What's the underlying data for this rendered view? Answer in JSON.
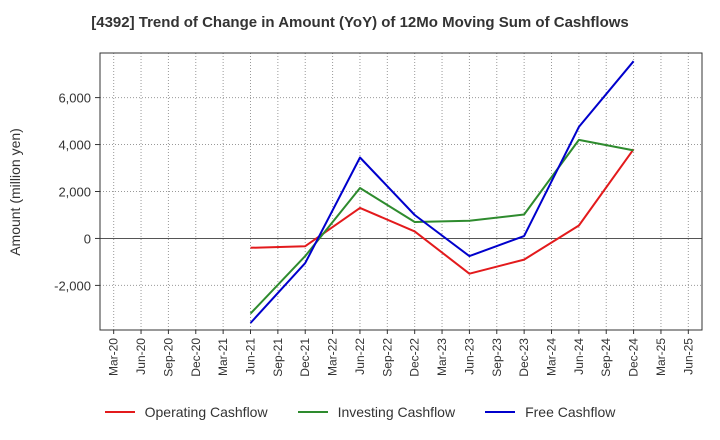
{
  "chart_data": {
    "type": "line",
    "title": "[4392]  Trend of Change in Amount (YoY) of 12Mo Moving Sum of Cashflows",
    "xlabel": "",
    "ylabel": "Amount (million yen)",
    "categories": [
      "Mar-20",
      "Jun-20",
      "Sep-20",
      "Dec-20",
      "Mar-21",
      "Jun-21",
      "Sep-21",
      "Dec-21",
      "Mar-22",
      "Jun-22",
      "Sep-22",
      "Dec-22",
      "Mar-23",
      "Jun-23",
      "Sep-23",
      "Dec-23",
      "Mar-24",
      "Jun-24",
      "Sep-24",
      "Dec-24",
      "Mar-25",
      "Jun-25"
    ],
    "ylim": [
      -3900,
      7900
    ],
    "yticks": [
      -2000,
      0,
      2000,
      4000,
      6000
    ],
    "ytick_labels": [
      "-2,000",
      "0",
      "2,000",
      "4,000",
      "6,000"
    ],
    "grid": true,
    "legend_position": "bottom",
    "series": [
      {
        "name": "Operating Cashflow",
        "color": "#e31a1c",
        "values": [
          null,
          null,
          null,
          null,
          null,
          -400,
          null,
          -330,
          null,
          1300,
          null,
          300,
          null,
          -1500,
          null,
          -900,
          null,
          550,
          null,
          3800,
          null,
          null
        ]
      },
      {
        "name": "Investing Cashflow",
        "color": "#2e8b2e",
        "values": [
          null,
          null,
          null,
          null,
          null,
          -3200,
          null,
          -750,
          null,
          2150,
          null,
          700,
          null,
          750,
          null,
          1020,
          null,
          4200,
          null,
          3750,
          null,
          null
        ]
      },
      {
        "name": "Free Cashflow",
        "color": "#0000cc",
        "values": [
          null,
          null,
          null,
          null,
          null,
          -3600,
          null,
          -1050,
          null,
          3450,
          null,
          1000,
          null,
          -750,
          null,
          100,
          null,
          4750,
          null,
          7550,
          null,
          null
        ]
      }
    ]
  }
}
